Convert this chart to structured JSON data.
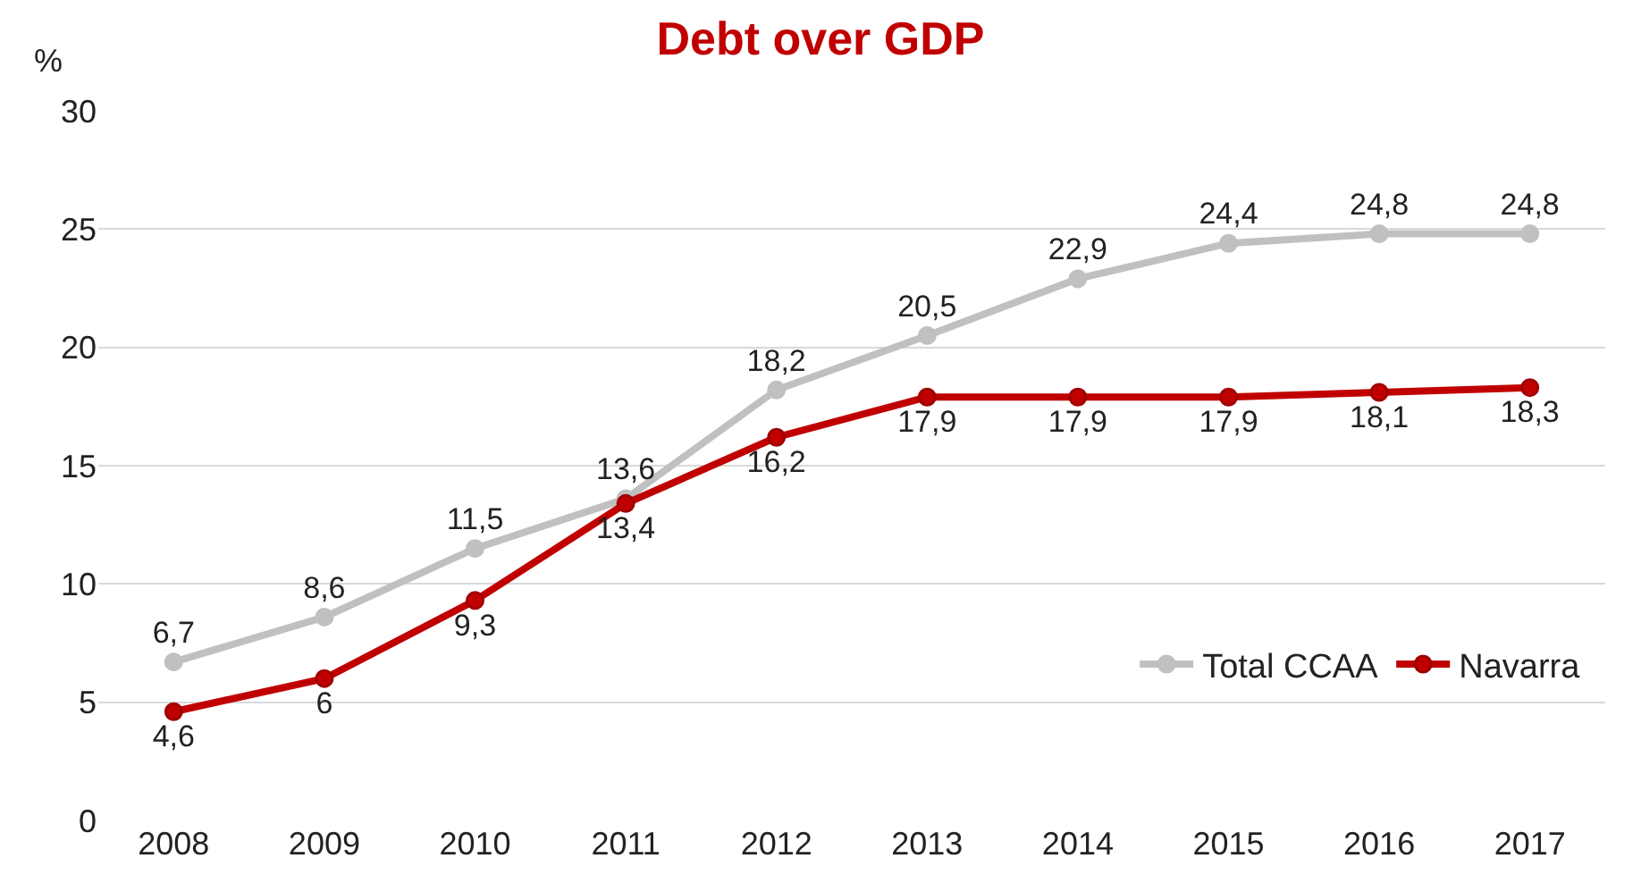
{
  "chart_data": {
    "type": "line",
    "title": "Debt over GDP",
    "ylabel": "%",
    "categories": [
      "2008",
      "2009",
      "2010",
      "2011",
      "2012",
      "2013",
      "2014",
      "2015",
      "2016",
      "2017"
    ],
    "series": [
      {
        "name": "Total CCAA",
        "color": "#c0c0c0",
        "values": [
          6.7,
          8.6,
          11.5,
          13.6,
          18.2,
          20.5,
          22.9,
          24.4,
          24.8,
          24.8
        ],
        "value_labels": [
          "6,7",
          "8,6",
          "11,5",
          "13,6",
          "18,2",
          "20,5",
          "22,9",
          "24,4",
          "24,8",
          "24,8"
        ]
      },
      {
        "name": "Navarra",
        "color": "#c00000",
        "values": [
          4.6,
          6,
          9.3,
          13.4,
          16.2,
          17.9,
          17.9,
          17.9,
          18.1,
          18.3
        ],
        "value_labels": [
          "4,6",
          "6",
          "9,3",
          "13,4",
          "16,2",
          "17,9",
          "17,9",
          "17,9",
          "18,1",
          "18,3"
        ]
      }
    ],
    "ylim": [
      0,
      30
    ],
    "yticks": [
      0,
      5,
      10,
      15,
      20,
      25,
      30
    ],
    "grid": "y",
    "legend": "bottom right",
    "marker": "circle",
    "line_style": "solid"
  }
}
